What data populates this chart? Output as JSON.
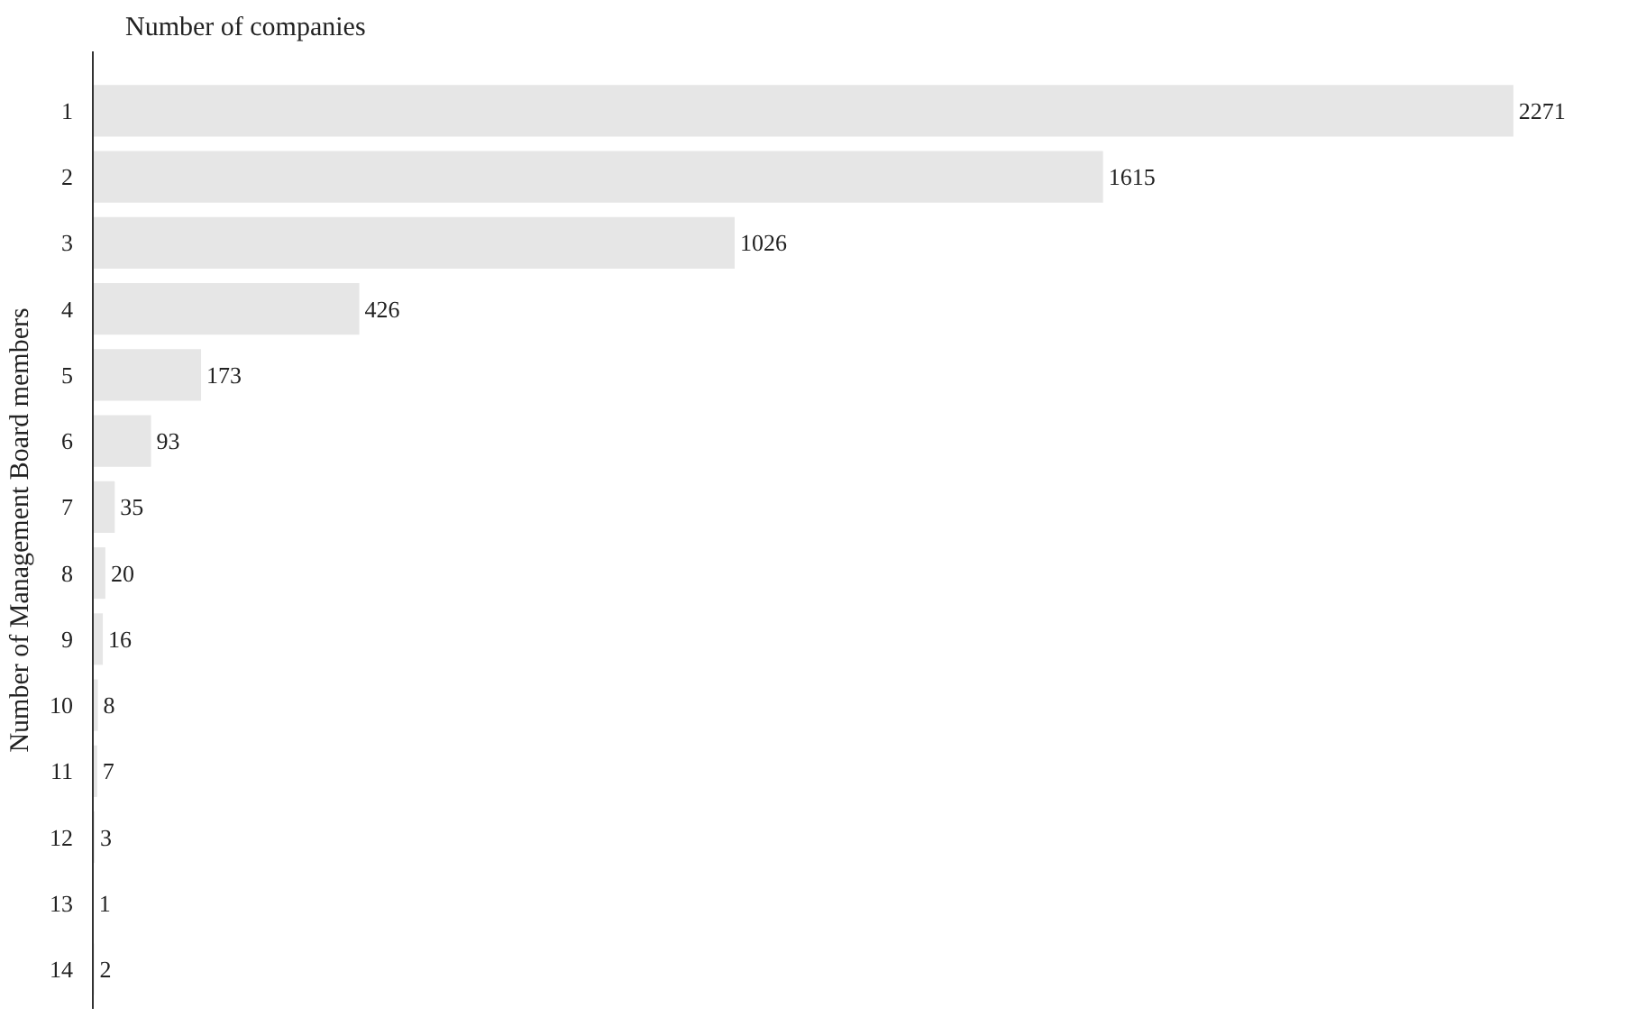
{
  "chart_data": {
    "type": "bar",
    "orientation": "horizontal",
    "title": "Number of companies",
    "ylabel": "Number of Management Board members",
    "categories": [
      "1",
      "2",
      "3",
      "4",
      "5",
      "6",
      "7",
      "8",
      "9",
      "10",
      "11",
      "12",
      "13",
      "14"
    ],
    "values": [
      2271,
      1615,
      1026,
      426,
      173,
      93,
      35,
      20,
      16,
      8,
      7,
      3,
      1,
      2
    ],
    "color": "#e6e6e6",
    "data_labels": true,
    "tick_labels": "y"
  }
}
